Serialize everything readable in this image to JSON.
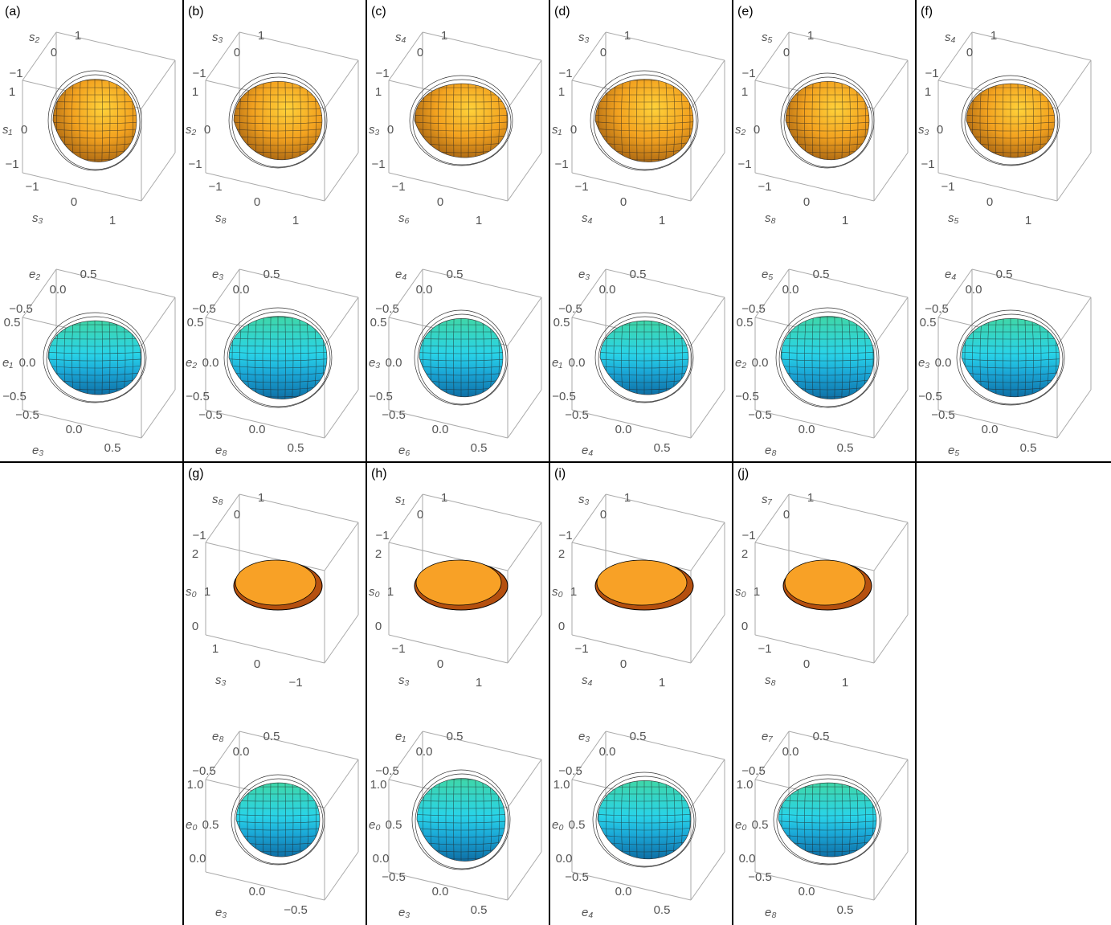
{
  "panels": [
    {
      "label": "(a)",
      "top": {
        "depth": {
          "label": "s₂",
          "ticks": [
            "1",
            "0",
            "−1"
          ]
        },
        "vertical": {
          "label": "s₁",
          "ticks": [
            "1",
            "0",
            "−1"
          ]
        },
        "horizontal": {
          "label": "s₃",
          "ticks": [
            "−1",
            "0",
            "1"
          ]
        }
      },
      "bottom": {
        "depth": {
          "label": "e₂",
          "ticks": [
            "0.5",
            "0.0",
            "−0.5"
          ]
        },
        "vertical": {
          "label": "e₁",
          "ticks": [
            "0.5",
            "0.0",
            "−0.5"
          ]
        },
        "horizontal": {
          "label": "e₃",
          "ticks": [
            "−0.5",
            "0.0",
            "0.5"
          ]
        }
      }
    },
    {
      "label": "(b)",
      "top": {
        "depth": {
          "label": "s₃",
          "ticks": [
            "1",
            "0",
            "−1"
          ]
        },
        "vertical": {
          "label": "s₂",
          "ticks": [
            "1",
            "0",
            "−1"
          ]
        },
        "horizontal": {
          "label": "s₈",
          "ticks": [
            "−1",
            "0",
            "1"
          ]
        }
      },
      "bottom": {
        "depth": {
          "label": "e₃",
          "ticks": [
            "0.5",
            "0.0",
            "−0.5"
          ]
        },
        "vertical": {
          "label": "e₂",
          "ticks": [
            "0.5",
            "0.0",
            "−0.5"
          ]
        },
        "horizontal": {
          "label": "e₈",
          "ticks": [
            "−0.5",
            "0.0",
            "0.5"
          ]
        }
      }
    },
    {
      "label": "(c)",
      "top": {
        "depth": {
          "label": "s₄",
          "ticks": [
            "1",
            "0",
            "−1"
          ]
        },
        "vertical": {
          "label": "s₃",
          "ticks": [
            "1",
            "0",
            "−1"
          ]
        },
        "horizontal": {
          "label": "s₆",
          "ticks": [
            "−1",
            "0",
            "1"
          ]
        }
      },
      "bottom": {
        "depth": {
          "label": "e₄",
          "ticks": [
            "0.5",
            "0.0",
            "−0.5"
          ]
        },
        "vertical": {
          "label": "e₃",
          "ticks": [
            "0.5",
            "0.0",
            "−0.5"
          ]
        },
        "horizontal": {
          "label": "e₆",
          "ticks": [
            "−0.5",
            "0.0",
            "0.5"
          ]
        }
      }
    },
    {
      "label": "(d)",
      "top": {
        "depth": {
          "label": "s₃",
          "ticks": [
            "1",
            "0",
            "−1"
          ]
        },
        "vertical": {
          "label": "s₁",
          "ticks": [
            "1",
            "0",
            "−1"
          ]
        },
        "horizontal": {
          "label": "s₄",
          "ticks": [
            "−1",
            "0",
            "1"
          ]
        }
      },
      "bottom": {
        "depth": {
          "label": "e₃",
          "ticks": [
            "0.5",
            "0.0",
            "−0.5"
          ]
        },
        "vertical": {
          "label": "e₁",
          "ticks": [
            "0.5",
            "0.0",
            "−0.5"
          ]
        },
        "horizontal": {
          "label": "e₄",
          "ticks": [
            "−0.5",
            "0.0",
            "0.5"
          ]
        }
      }
    },
    {
      "label": "(e)",
      "top": {
        "depth": {
          "label": "s₅",
          "ticks": [
            "1",
            "0",
            "−1"
          ]
        },
        "vertical": {
          "label": "s₂",
          "ticks": [
            "1",
            "0",
            "−1"
          ]
        },
        "horizontal": {
          "label": "s₈",
          "ticks": [
            "−1",
            "0",
            "1"
          ]
        }
      },
      "bottom": {
        "depth": {
          "label": "e₅",
          "ticks": [
            "0.5",
            "0.0",
            "−0.5"
          ]
        },
        "vertical": {
          "label": "e₂",
          "ticks": [
            "0.5",
            "0.0",
            "−0.5"
          ]
        },
        "horizontal": {
          "label": "e₈",
          "ticks": [
            "−0.5",
            "0.0",
            "0.5"
          ]
        }
      }
    },
    {
      "label": "(f)",
      "top": {
        "depth": {
          "label": "s₄",
          "ticks": [
            "1",
            "0",
            "−1"
          ]
        },
        "vertical": {
          "label": "s₃",
          "ticks": [
            "1",
            "0",
            "−1"
          ]
        },
        "horizontal": {
          "label": "s₅",
          "ticks": [
            "−1",
            "0",
            "1"
          ]
        }
      },
      "bottom": {
        "depth": {
          "label": "e₄",
          "ticks": [
            "0.5",
            "0.0",
            "−0.5"
          ]
        },
        "vertical": {
          "label": "e₃",
          "ticks": [
            "0.5",
            "0.0",
            "−0.5"
          ]
        },
        "horizontal": {
          "label": "e₅",
          "ticks": [
            "−0.5",
            "0.0",
            "0.5"
          ]
        }
      }
    },
    {
      "label": "(g)",
      "top": {
        "depth": {
          "label": "s₈",
          "ticks": [
            "1",
            "0",
            "−1"
          ]
        },
        "vertical": {
          "label": "s₀",
          "ticks": [
            "2",
            "1",
            "0"
          ]
        },
        "horizontal": {
          "label": "s₃",
          "ticks": [
            "1",
            "0",
            "−1"
          ]
        }
      },
      "bottom": {
        "depth": {
          "label": "e₈",
          "ticks": [
            "0.5",
            "0.0",
            "−0.5"
          ]
        },
        "vertical": {
          "label": "e₀",
          "ticks": [
            "1.0",
            "0.5",
            "0.0"
          ]
        },
        "horizontal": {
          "label": "e₃",
          "ticks": [
            "0.0",
            "−0.5"
          ]
        }
      }
    },
    {
      "label": "(h)",
      "top": {
        "depth": {
          "label": "s₁",
          "ticks": [
            "1",
            "0",
            "−1"
          ]
        },
        "vertical": {
          "label": "s₀",
          "ticks": [
            "2",
            "1",
            "0"
          ]
        },
        "horizontal": {
          "label": "s₃",
          "ticks": [
            "−1",
            "0",
            "1"
          ]
        }
      },
      "bottom": {
        "depth": {
          "label": "e₁",
          "ticks": [
            "0.5",
            "0.0",
            "−0.5"
          ]
        },
        "vertical": {
          "label": "e₀",
          "ticks": [
            "1.0",
            "0.5",
            "0.0"
          ]
        },
        "horizontal": {
          "label": "e₃",
          "ticks": [
            "−0.5",
            "0.0",
            "0.5"
          ]
        }
      }
    },
    {
      "label": "(i)",
      "top": {
        "depth": {
          "label": "s₃",
          "ticks": [
            "1",
            "0",
            "−1"
          ]
        },
        "vertical": {
          "label": "s₀",
          "ticks": [
            "2",
            "1",
            "0"
          ]
        },
        "horizontal": {
          "label": "s₄",
          "ticks": [
            "−1",
            "0",
            "1"
          ]
        }
      },
      "bottom": {
        "depth": {
          "label": "e₃",
          "ticks": [
            "0.5",
            "0.0",
            "−0.5"
          ]
        },
        "vertical": {
          "label": "e₀",
          "ticks": [
            "1.0",
            "0.5",
            "0.0"
          ]
        },
        "horizontal": {
          "label": "e₄",
          "ticks": [
            "−0.5",
            "0.0",
            "0.5"
          ]
        }
      }
    },
    {
      "label": "(j)",
      "top": {
        "depth": {
          "label": "s₇",
          "ticks": [
            "1",
            "0",
            "−1"
          ]
        },
        "vertical": {
          "label": "s₀",
          "ticks": [
            "2",
            "1",
            "0"
          ]
        },
        "horizontal": {
          "label": "s₈",
          "ticks": [
            "−1",
            "0",
            "1"
          ]
        }
      },
      "bottom": {
        "depth": {
          "label": "e₇",
          "ticks": [
            "0.5",
            "0.0",
            "−0.5"
          ]
        },
        "vertical": {
          "label": "e₀",
          "ticks": [
            "1.0",
            "0.5",
            "0.0"
          ]
        },
        "horizontal": {
          "label": "e₈",
          "ticks": [
            "−0.5",
            "0.0",
            "0.5"
          ]
        }
      }
    }
  ]
}
